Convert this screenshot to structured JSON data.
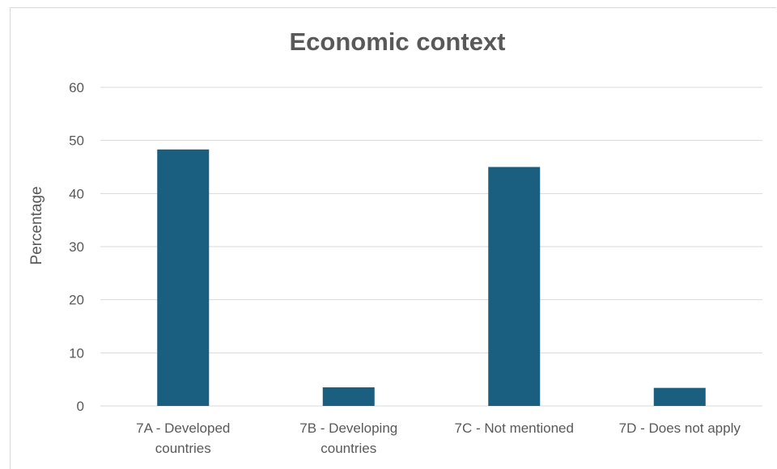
{
  "chart_data": {
    "type": "bar",
    "title": "Economic context",
    "ylabel": "Percentage",
    "xlabel": "",
    "categories": [
      [
        "7A - Developed",
        "countries"
      ],
      [
        "7B - Developing",
        "countries"
      ],
      [
        "7C - Not mentioned"
      ],
      [
        "7D - Does not apply"
      ]
    ],
    "values": [
      48.3,
      3.5,
      45,
      3.4
    ],
    "ylim": [
      0,
      60
    ],
    "yticks": [
      0,
      10,
      20,
      30,
      40,
      50,
      60
    ],
    "grid": true,
    "legend": "none",
    "colors": {
      "bar": "#1a5e80",
      "grid": "#d9d9d9",
      "text": "#595959"
    }
  }
}
